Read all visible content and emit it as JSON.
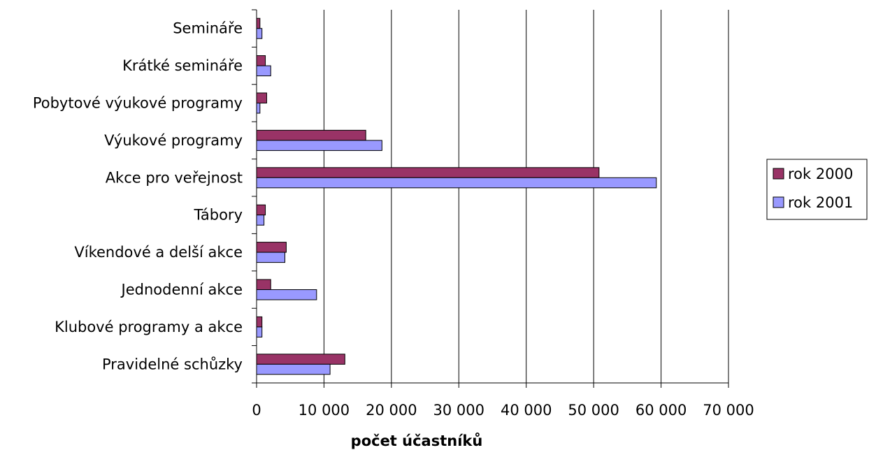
{
  "chart_data": {
    "type": "bar",
    "orientation": "horizontal",
    "categories": [
      "Semináře",
      "Krátké semináře",
      "Pobytové výukové programy",
      "Výukové programy",
      "Akce pro veřejnost",
      "Tábory",
      "Víkendové a delší akce",
      "Jednodenní akce",
      "Klubové programy a akce",
      "Pravidelné schůzky"
    ],
    "series": [
      {
        "name": "rok 2000",
        "color": "#993366",
        "values": [
          500,
          1300,
          1500,
          16200,
          50800,
          1300,
          4400,
          2100,
          800,
          13100
        ]
      },
      {
        "name": "rok 2001",
        "color": "#9999ff",
        "values": [
          800,
          2100,
          500,
          18600,
          59300,
          1100,
          4200,
          8900,
          800,
          10900
        ]
      }
    ],
    "xlim": [
      0,
      70000
    ],
    "xticks": [
      0,
      10000,
      20000,
      30000,
      40000,
      50000,
      60000,
      70000
    ],
    "xtick_labels": [
      "0",
      "10 000",
      "20 000",
      "30 000",
      "40 000",
      "50 000",
      "60 000",
      "70 000"
    ],
    "xlabel": "počet účastníků",
    "ylabel": "",
    "title": "",
    "grid": "vertical",
    "legend_position": "right"
  }
}
